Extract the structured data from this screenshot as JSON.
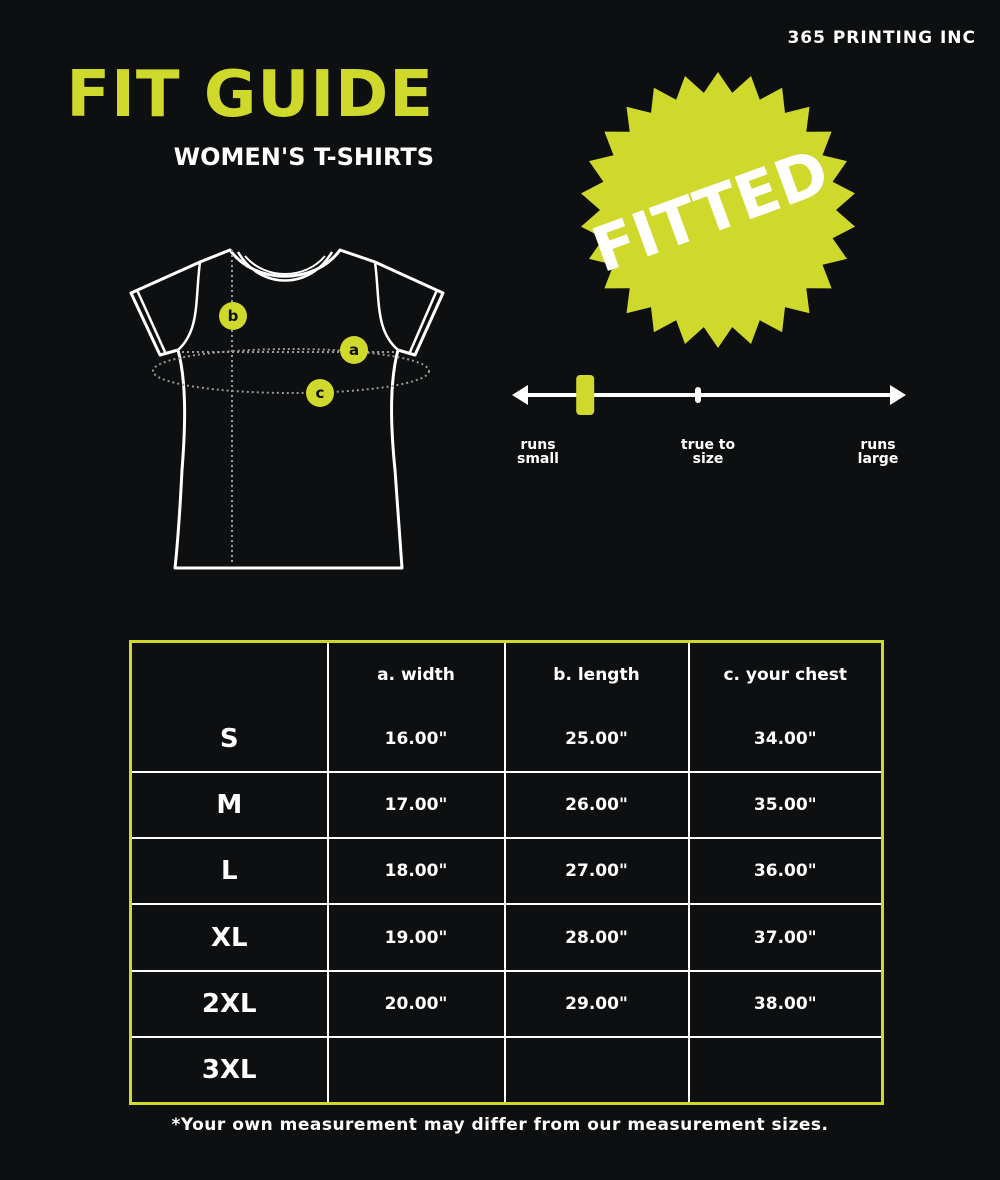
{
  "brand": "365 PRINTING INC",
  "title": "FIT GUIDE",
  "subtitle": "WOMEN'S T-SHIRTS",
  "badge": "FITTED",
  "colors": {
    "accent": "#cfd92b",
    "background": "#0d0f10",
    "line": "#ffffff"
  },
  "diagram": {
    "markers": [
      "a",
      "b",
      "c"
    ]
  },
  "fit_scale": {
    "labels": [
      "runs small",
      "true to size",
      "runs large"
    ],
    "level": 0.18
  },
  "table": {
    "headers": [
      "",
      "a. width",
      "b. length",
      "c. your chest"
    ],
    "rows": [
      [
        "S",
        "16.00\"",
        "25.00\"",
        "34.00\""
      ],
      [
        "M",
        "17.00\"",
        "26.00\"",
        "35.00\""
      ],
      [
        "L",
        "18.00\"",
        "27.00\"",
        "36.00\""
      ],
      [
        "XL",
        "19.00\"",
        "28.00\"",
        "37.00\""
      ],
      [
        "2XL",
        "20.00\"",
        "29.00\"",
        "38.00\""
      ],
      [
        "3XL",
        "",
        "",
        ""
      ]
    ]
  },
  "footnote": "*Your own measurement may differ from our measurement sizes."
}
